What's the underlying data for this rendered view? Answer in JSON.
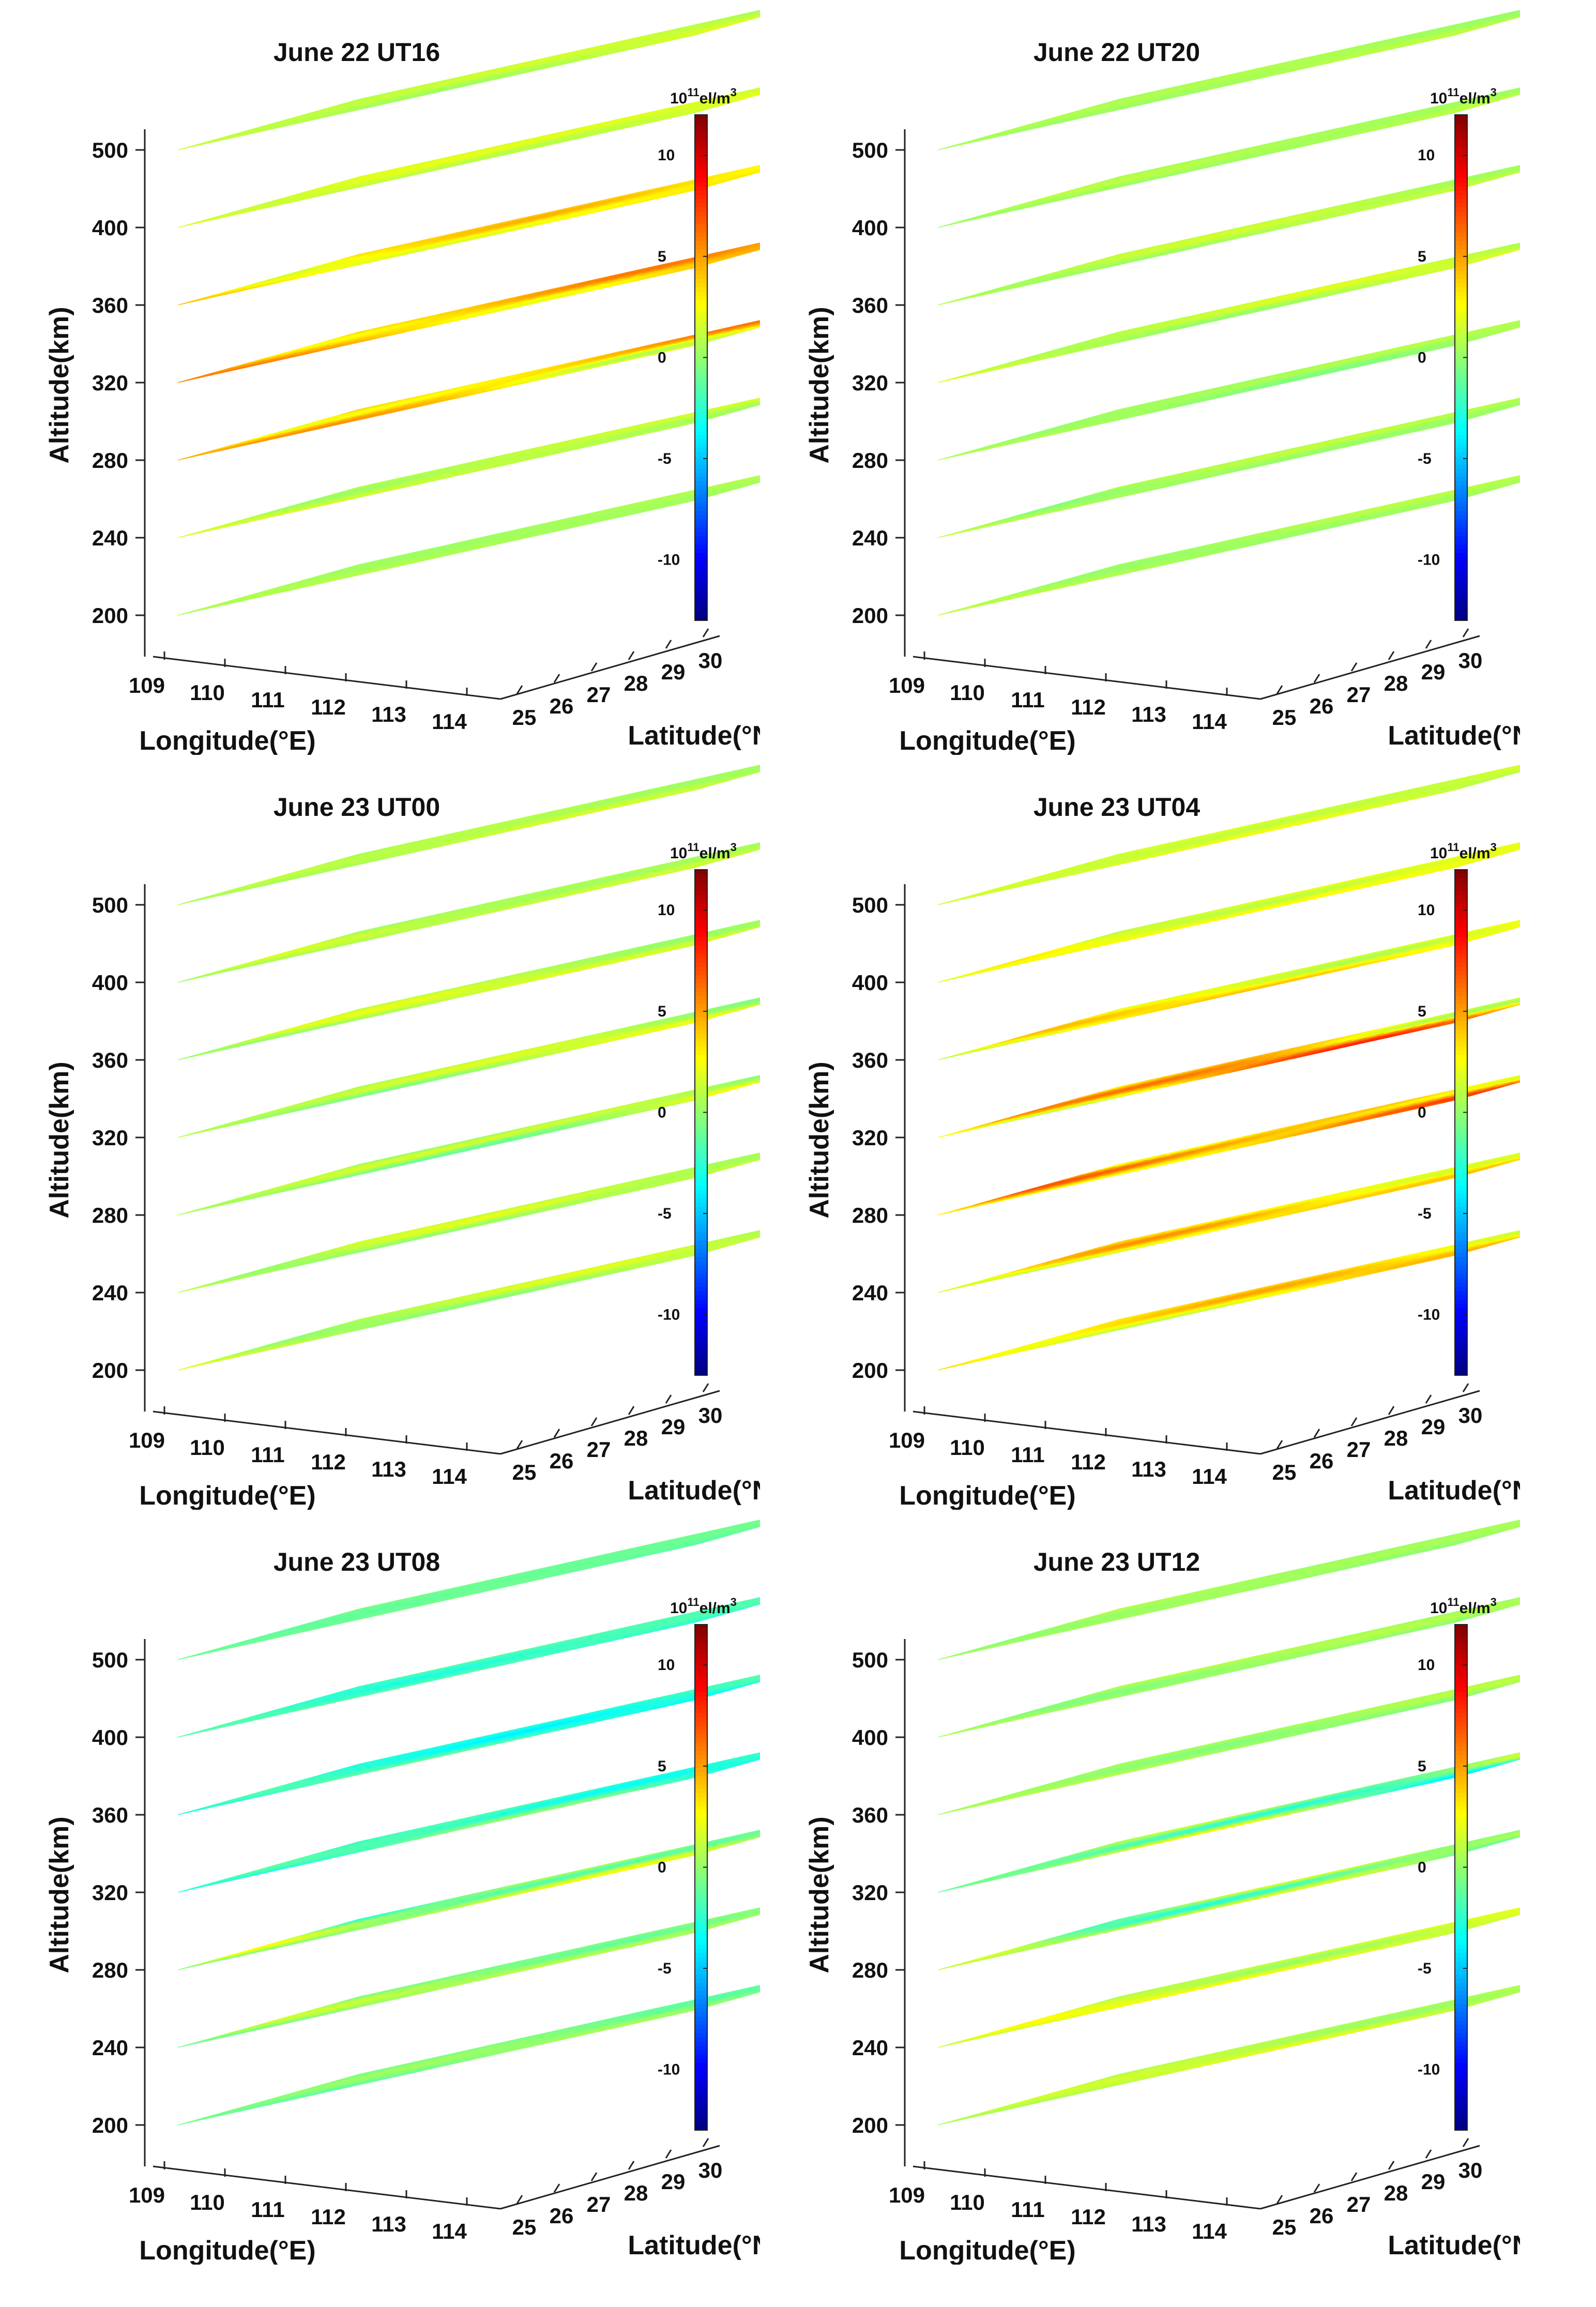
{
  "chart_data": [
    {
      "type": "heatmap",
      "title": "June 22 UT16",
      "xlabel": "Longitude(°E)",
      "ylabel": "Latitude(°N)",
      "zlabel": "Altitude(km)",
      "x_ticks": [
        "109",
        "110",
        "111",
        "112",
        "113",
        "114"
      ],
      "y_ticks": [
        "25",
        "26",
        "27",
        "28",
        "29",
        "30"
      ],
      "z_ticks": [
        "200",
        "240",
        "280",
        "320",
        "360",
        "400",
        "500"
      ],
      "colorbar": {
        "unit_base": "10",
        "unit_exp": "11",
        "unit_text": "el/m",
        "unit_pow": "3",
        "ticks": [
          "10",
          "5",
          "0",
          "-5",
          "-10"
        ],
        "range": [
          -13,
          12
        ]
      },
      "layers": [
        {
          "altitude": "200",
          "mean": 0.5,
          "var": 0.3
        },
        {
          "altitude": "240",
          "mean": 1.0,
          "var": 1.0
        },
        {
          "altitude": "280",
          "mean": 3.5,
          "var": 3.0
        },
        {
          "altitude": "320",
          "mean": 4.0,
          "var": 2.0
        },
        {
          "altitude": "360",
          "mean": 3.0,
          "var": 1.8
        },
        {
          "altitude": "400",
          "mean": 1.5,
          "var": 1.2
        },
        {
          "altitude": "500",
          "mean": 1.0,
          "var": 0.8
        }
      ]
    },
    {
      "type": "heatmap",
      "title": "June 22 UT20",
      "xlabel": "Longitude(°E)",
      "ylabel": "Latitude(°N)",
      "zlabel": "Altitude(km)",
      "x_ticks": [
        "109",
        "110",
        "111",
        "112",
        "113",
        "114"
      ],
      "y_ticks": [
        "25",
        "26",
        "27",
        "28",
        "29",
        "30"
      ],
      "z_ticks": [
        "200",
        "240",
        "280",
        "320",
        "360",
        "400",
        "500"
      ],
      "colorbar": {
        "unit_base": "10",
        "unit_exp": "11",
        "unit_text": "el/m",
        "unit_pow": "3",
        "ticks": [
          "10",
          "5",
          "0",
          "-5",
          "-10"
        ],
        "range": [
          -13,
          12
        ]
      },
      "layers": [
        {
          "altitude": "200",
          "mean": 0.5,
          "var": 0.5
        },
        {
          "altitude": "240",
          "mean": 0.5,
          "var": 1.0
        },
        {
          "altitude": "280",
          "mean": 0.3,
          "var": 1.0
        },
        {
          "altitude": "320",
          "mean": 1.0,
          "var": 1.0
        },
        {
          "altitude": "360",
          "mean": 0.8,
          "var": 0.8
        },
        {
          "altitude": "400",
          "mean": 0.5,
          "var": 0.7
        },
        {
          "altitude": "500",
          "mean": 0.5,
          "var": 0.5
        }
      ]
    },
    {
      "type": "heatmap",
      "title": "June 23 UT00",
      "xlabel": "Longitude(°E)",
      "ylabel": "Latitude(°N)",
      "zlabel": "Altitude(km)",
      "x_ticks": [
        "109",
        "110",
        "111",
        "112",
        "113",
        "114"
      ],
      "y_ticks": [
        "25",
        "26",
        "27",
        "28",
        "29",
        "30"
      ],
      "z_ticks": [
        "200",
        "240",
        "280",
        "320",
        "360",
        "400",
        "500"
      ],
      "colorbar": {
        "unit_base": "10",
        "unit_exp": "11",
        "unit_text": "el/m",
        "unit_pow": "3",
        "ticks": [
          "10",
          "5",
          "0",
          "-5",
          "-10"
        ],
        "range": [
          -13,
          12
        ]
      },
      "layers": [
        {
          "altitude": "200",
          "mean": 0.8,
          "var": 1.2
        },
        {
          "altitude": "240",
          "mean": 0.8,
          "var": 1.5
        },
        {
          "altitude": "280",
          "mean": 0.5,
          "var": 2.5
        },
        {
          "altitude": "320",
          "mean": 0.8,
          "var": 1.5
        },
        {
          "altitude": "360",
          "mean": 1.0,
          "var": 1.2
        },
        {
          "altitude": "400",
          "mean": 0.8,
          "var": 1.0
        },
        {
          "altitude": "500",
          "mean": 0.8,
          "var": 0.8
        }
      ]
    },
    {
      "type": "heatmap",
      "title": "June 23 UT04",
      "xlabel": "Longitude(°E)",
      "ylabel": "Latitude(°N)",
      "zlabel": "Altitude(km)",
      "x_ticks": [
        "109",
        "110",
        "111",
        "112",
        "113",
        "114"
      ],
      "y_ticks": [
        "25",
        "26",
        "27",
        "28",
        "29",
        "30"
      ],
      "z_ticks": [
        "200",
        "240",
        "280",
        "320",
        "360",
        "400",
        "500"
      ],
      "colorbar": {
        "unit_base": "10",
        "unit_exp": "11",
        "unit_text": "el/m",
        "unit_pow": "3",
        "ticks": [
          "10",
          "5",
          "0",
          "-5",
          "-10"
        ],
        "range": [
          -13,
          12
        ]
      },
      "layers": [
        {
          "altitude": "200",
          "mean": 3.0,
          "var": 2.0
        },
        {
          "altitude": "240",
          "mean": 3.0,
          "var": 2.5
        },
        {
          "altitude": "280",
          "mean": 4.0,
          "var": 4.0
        },
        {
          "altitude": "320",
          "mean": 4.0,
          "var": 4.0
        },
        {
          "altitude": "360",
          "mean": 2.5,
          "var": 2.0
        },
        {
          "altitude": "400",
          "mean": 2.0,
          "var": 1.5
        },
        {
          "altitude": "500",
          "mean": 1.5,
          "var": 1.0
        }
      ]
    },
    {
      "type": "heatmap",
      "title": "June 23 UT08",
      "xlabel": "Longitude(°E)",
      "ylabel": "Latitude(°N)",
      "zlabel": "Altitude(km)",
      "x_ticks": [
        "109",
        "110",
        "111",
        "112",
        "113",
        "114"
      ],
      "y_ticks": [
        "25",
        "26",
        "27",
        "28",
        "29",
        "30"
      ],
      "z_ticks": [
        "200",
        "240",
        "280",
        "320",
        "360",
        "400",
        "500"
      ],
      "colorbar": {
        "unit_base": "10",
        "unit_exp": "11",
        "unit_text": "el/m",
        "unit_pow": "3",
        "ticks": [
          "10",
          "5",
          "0",
          "-5",
          "-10"
        ],
        "range": [
          -13,
          12
        ]
      },
      "layers": [
        {
          "altitude": "200",
          "mean": -0.5,
          "var": 1.0
        },
        {
          "altitude": "240",
          "mean": 0.0,
          "var": 1.5
        },
        {
          "altitude": "280",
          "mean": 0.0,
          "var": 3.5
        },
        {
          "altitude": "320",
          "mean": -2.0,
          "var": 2.0
        },
        {
          "altitude": "360",
          "mean": -2.5,
          "var": 1.5
        },
        {
          "altitude": "400",
          "mean": -2.0,
          "var": 1.0
        },
        {
          "altitude": "500",
          "mean": -1.0,
          "var": 0.4
        }
      ]
    },
    {
      "type": "heatmap",
      "title": "June 23 UT12",
      "xlabel": "Longitude(°E)",
      "ylabel": "Latitude(°N)",
      "zlabel": "Altitude(km)",
      "x_ticks": [
        "109",
        "110",
        "111",
        "112",
        "113",
        "114"
      ],
      "y_ticks": [
        "25",
        "26",
        "27",
        "28",
        "29",
        "30"
      ],
      "z_ticks": [
        "200",
        "240",
        "280",
        "320",
        "360",
        "400",
        "500"
      ],
      "colorbar": {
        "unit_base": "10",
        "unit_exp": "11",
        "unit_text": "el/m",
        "unit_pow": "3",
        "ticks": [
          "10",
          "5",
          "0",
          "-5",
          "-10"
        ],
        "range": [
          -13,
          12
        ]
      },
      "layers": [
        {
          "altitude": "200",
          "mean": 1.0,
          "var": 1.0
        },
        {
          "altitude": "240",
          "mean": 1.5,
          "var": 1.5
        },
        {
          "altitude": "280",
          "mean": 0.0,
          "var": 4.0
        },
        {
          "altitude": "320",
          "mean": -0.5,
          "var": 4.0
        },
        {
          "altitude": "360",
          "mean": 0.3,
          "var": 0.8
        },
        {
          "altitude": "400",
          "mean": 0.3,
          "var": 0.8
        },
        {
          "altitude": "500",
          "mean": 0.3,
          "var": 0.5
        }
      ]
    }
  ]
}
